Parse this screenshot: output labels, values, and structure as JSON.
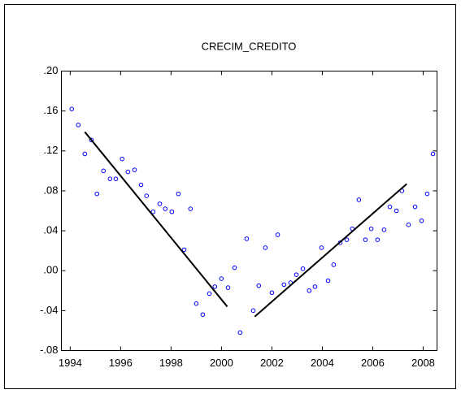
{
  "chart_data": {
    "type": "scatter",
    "title": "CRECIM_CREDITO",
    "x": [
      1994.06,
      1994.32,
      1994.58,
      1994.84,
      1995.06,
      1995.32,
      1995.58,
      1995.81,
      1996.06,
      1996.29,
      1996.55,
      1996.81,
      1997.03,
      1997.29,
      1997.55,
      1997.77,
      1998.03,
      1998.29,
      1998.52,
      1998.77,
      1999.0,
      1999.26,
      1999.52,
      1999.74,
      2000.0,
      2000.26,
      2000.52,
      2000.74,
      2001.0,
      2001.26,
      2001.48,
      2001.74,
      2002.0,
      2002.23,
      2002.48,
      2002.74,
      2002.97,
      2003.23,
      2003.48,
      2003.71,
      2003.97,
      2004.23,
      2004.45,
      2004.71,
      2004.97,
      2005.19,
      2005.45,
      2005.71,
      2005.94,
      2006.19,
      2006.45,
      2006.68,
      2006.94,
      2007.16,
      2007.42,
      2007.68,
      2007.94,
      2008.16,
      2008.39
    ],
    "values": [
      0.162,
      0.146,
      0.117,
      0.131,
      0.077,
      0.1,
      0.092,
      0.092,
      0.112,
      0.099,
      0.101,
      0.086,
      0.075,
      0.059,
      0.067,
      0.062,
      0.059,
      0.077,
      0.021,
      0.062,
      -0.033,
      -0.044,
      -0.023,
      -0.016,
      -0.008,
      -0.017,
      0.003,
      -0.062,
      0.032,
      -0.04,
      -0.015,
      0.023,
      -0.022,
      0.036,
      -0.014,
      -0.012,
      -0.004,
      0.002,
      -0.02,
      -0.016,
      0.023,
      -0.01,
      0.006,
      0.028,
      0.031,
      0.042,
      0.071,
      0.031,
      0.042,
      0.031,
      0.041,
      0.064,
      0.06,
      0.08,
      0.046,
      0.064,
      0.05,
      0.077,
      0.117
    ],
    "color": "#0000ff",
    "lines": [
      {
        "x": [
          1994.58,
          2000.23
        ],
        "values": [
          0.139,
          -0.036
        ],
        "color": "#000000"
      },
      {
        "x": [
          2001.32,
          2007.35
        ],
        "values": [
          -0.046,
          0.087
        ],
        "color": "#000000"
      }
    ],
    "xlim": [
      1993.65,
      2008.55
    ],
    "ylim": [
      -0.08,
      0.2
    ],
    "xticks": [
      1994,
      1996,
      1998,
      2000,
      2002,
      2004,
      2006,
      2008
    ],
    "yticks": [
      {
        "value": -0.08,
        "label": "-.08"
      },
      {
        "value": -0.04,
        "label": "-.04"
      },
      {
        "value": 0,
        "label": ".00"
      },
      {
        "value": 0.04,
        "label": ".04"
      },
      {
        "value": 0.08,
        "label": ".08"
      },
      {
        "value": 0.12,
        "label": ".12"
      },
      {
        "value": 0.16,
        "label": ".16"
      },
      {
        "value": 0.2,
        "label": ".20"
      }
    ]
  }
}
